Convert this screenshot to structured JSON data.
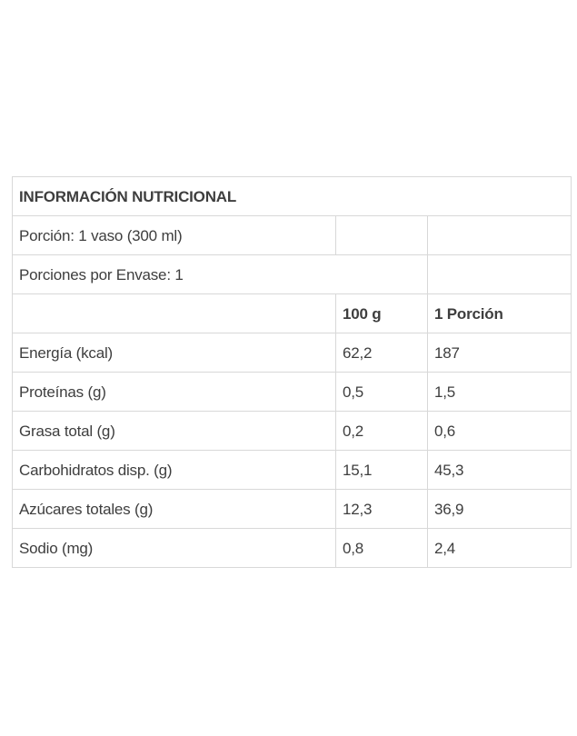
{
  "colors": {
    "text": "#3e3e3e",
    "border": "#d8d8d8",
    "background": "#ffffff"
  },
  "table": {
    "title": "INFORMACIÓN NUTRICIONAL",
    "serving_size": "Porción: 1 vaso (300 ml)",
    "servings_per_container": "Porciones por Envase: 1",
    "col_headers": [
      "100 g",
      "1 Porción"
    ],
    "rows": [
      {
        "label": "Energía (kcal)",
        "per_100g": "62,2",
        "per_portion": "187",
        "indent": false
      },
      {
        "label": "Proteínas (g)",
        "per_100g": "0,5",
        "per_portion": "1,5",
        "indent": false
      },
      {
        "label": "Grasa total (g)",
        "per_100g": "0,2",
        "per_portion": "0,6",
        "indent": false
      },
      {
        "label": "Carbohidratos disp. (g)",
        "per_100g": "15,1",
        "per_portion": "45,3",
        "indent": false
      },
      {
        "label": "Azúcares totales (g)",
        "per_100g": "12,3",
        "per_portion": "36,9",
        "indent": true
      },
      {
        "label": "Sodio (mg)",
        "per_100g": "0,8",
        "per_portion": "2,4",
        "indent": false
      }
    ]
  }
}
